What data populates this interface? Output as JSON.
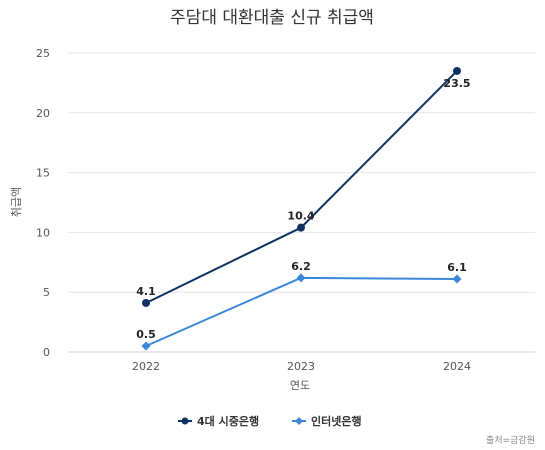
{
  "chart_data": {
    "type": "line",
    "title": "주담대 대환대출 신규 취급액",
    "xlabel": "연도",
    "ylabel": "취급액",
    "categories": [
      "2022",
      "2023",
      "2024"
    ],
    "ylim": [
      0,
      25
    ],
    "yticks": [
      "0",
      "5",
      "10",
      "15",
      "20",
      "25"
    ],
    "grid": true,
    "legend_position": "bottom",
    "series": [
      {
        "name": "4대 시중은행",
        "values": [
          4.1,
          10.4,
          23.5
        ],
        "labels": [
          "4.1",
          "10.4",
          "23.5"
        ],
        "color": "#0d3163",
        "marker": "circle"
      },
      {
        "name": "인터넷은행",
        "values": [
          0.5,
          6.2,
          6.1
        ],
        "labels": [
          "0.5",
          "6.2",
          "6.1"
        ],
        "color": "#3b86db",
        "marker": "diamond"
      }
    ],
    "source": "출처=금감원"
  }
}
